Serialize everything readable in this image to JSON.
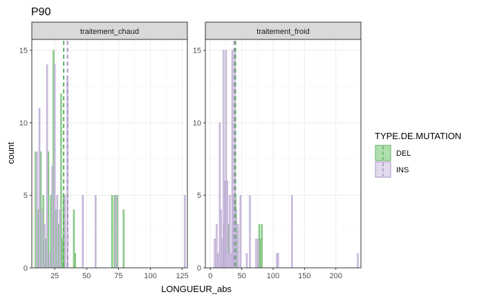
{
  "chart_data": {
    "type": "bar",
    "title": "P90",
    "xlabel": "LONGUEUR_abs",
    "ylabel": "count",
    "ylim": [
      0,
      15.75
    ],
    "y_ticks": [
      0,
      5,
      10,
      15
    ],
    "grid": true,
    "legend": {
      "title": "TYPE.DE.MUTATION",
      "position": "right",
      "entries": [
        {
          "name": "DEL",
          "color": "#8fd18f",
          "line_color": "#5fb35f"
        },
        {
          "name": "INS",
          "color": "#d6cbe6",
          "line_color": "#a892c4"
        }
      ]
    },
    "colors": {
      "DEL": "#5fb35f",
      "INS": "#a892c4",
      "panel_bg": "#ffffff",
      "strip_bg": "#d9d9d9",
      "grid": "#ebebeb"
    },
    "facets": [
      {
        "label": "traitement_chaud",
        "xlim": [
          7,
          129
        ],
        "x_ticks": [
          25,
          50,
          75,
          100,
          125
        ],
        "series": [
          {
            "name": "DEL",
            "bars": [
              [
                10,
                8
              ],
              [
                12,
                4
              ],
              [
                14,
                8
              ],
              [
                16,
                5
              ],
              [
                18,
                2
              ],
              [
                20,
                8
              ],
              [
                22,
                5
              ],
              [
                24,
                15
              ],
              [
                26,
                4
              ],
              [
                28,
                3
              ],
              [
                30,
                12
              ],
              [
                31,
                2
              ],
              [
                32,
                5
              ],
              [
                40,
                4
              ],
              [
                41,
                1
              ],
              [
                70,
                5
              ],
              [
                72,
                5
              ],
              [
                74,
                5
              ],
              [
                79,
                4
              ]
            ],
            "mean": 32
          },
          {
            "name": "INS",
            "bars": [
              [
                11,
                8
              ],
              [
                13,
                11
              ],
              [
                15,
                4
              ],
              [
                17,
                3
              ],
              [
                19,
                14
              ],
              [
                21,
                1
              ],
              [
                23,
                7
              ],
              [
                25,
                14
              ],
              [
                27,
                5
              ],
              [
                29,
                4
              ],
              [
                33,
                5
              ],
              [
                35,
                13
              ],
              [
                47,
                5
              ],
              [
                57,
                5
              ],
              [
                73,
                5
              ],
              [
                127,
                5
              ]
            ],
            "mean": 35
          }
        ]
      },
      {
        "label": "traitement_froid",
        "xlim": [
          -8,
          240
        ],
        "x_ticks": [
          0,
          50,
          100,
          150,
          200
        ],
        "series": [
          {
            "name": "DEL",
            "bars": [
              [
                26,
                1
              ],
              [
                28,
                3
              ],
              [
                40,
                5
              ],
              [
                41,
                4
              ],
              [
                78,
                3
              ],
              [
                80,
                2
              ],
              [
                82,
                3
              ]
            ],
            "mean": 40
          },
          {
            "name": "INS",
            "bars": [
              [
                7,
                2
              ],
              [
                10,
                3
              ],
              [
                12,
                1
              ],
              [
                15,
                10
              ],
              [
                17,
                4
              ],
              [
                19,
                2
              ],
              [
                21,
                15
              ],
              [
                22,
                3
              ],
              [
                24,
                6
              ],
              [
                25,
                15
              ],
              [
                27,
                6
              ],
              [
                29,
                1
              ],
              [
                31,
                5
              ],
              [
                33,
                1
              ],
              [
                35,
                15
              ],
              [
                37,
                5
              ],
              [
                39,
                15
              ],
              [
                41,
                4
              ],
              [
                44,
                3
              ],
              [
                48,
                5
              ],
              [
                58,
                1
              ],
              [
                63,
                5
              ],
              [
                73,
                2
              ],
              [
                76,
                2
              ],
              [
                106,
                1
              ],
              [
                108,
                1
              ],
              [
                130,
                5
              ],
              [
                235,
                1
              ]
            ],
            "mean": 38
          }
        ]
      }
    ]
  }
}
